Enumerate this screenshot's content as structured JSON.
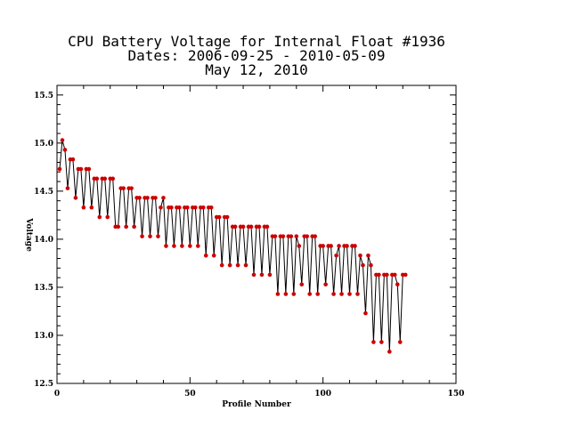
{
  "chart_data": {
    "type": "line",
    "title_lines": [
      "CPU Battery Voltage for Internal Float #1936",
      "Dates:  2006-09-25 -  2010-05-09",
      "May 12, 2010"
    ],
    "xlabel": "Profile Number",
    "ylabel": "Voltage",
    "xlim": [
      0,
      150
    ],
    "ylim": [
      12.5,
      15.6
    ],
    "x_ticks": [
      "0",
      "50",
      "100",
      "150"
    ],
    "y_ticks": [
      "12.5",
      "13.0",
      "13.5",
      "14.0",
      "14.5",
      "15.0",
      "15.5"
    ],
    "grid": false,
    "series": [
      {
        "line_color": "#000000",
        "marker_color": "#cc0000",
        "x": [
          1,
          2,
          3,
          4,
          5,
          6,
          7,
          8,
          9,
          10,
          11,
          12,
          13,
          14,
          15,
          16,
          17,
          18,
          19,
          20,
          21,
          22,
          23,
          24,
          25,
          26,
          27,
          28,
          29,
          30,
          31,
          32,
          33,
          34,
          35,
          36,
          37,
          38,
          39,
          40,
          41,
          42,
          43,
          44,
          45,
          46,
          47,
          48,
          49,
          50,
          51,
          52,
          53,
          54,
          55,
          56,
          57,
          58,
          59,
          60,
          61,
          62,
          63,
          64,
          65,
          66,
          67,
          68,
          69,
          70,
          71,
          72,
          73,
          74,
          75,
          76,
          77,
          78,
          79,
          80,
          81,
          82,
          83,
          84,
          85,
          86,
          87,
          88,
          89,
          90,
          91,
          92,
          93,
          94,
          95,
          96,
          97,
          98,
          99,
          100,
          101,
          102,
          103,
          104,
          105,
          106,
          107,
          108,
          109,
          110,
          111,
          112,
          113,
          114,
          115,
          116,
          117,
          118,
          119,
          120,
          121,
          122,
          123,
          124,
          125,
          126,
          127,
          128,
          129,
          130,
          131
        ],
        "y": [
          14.73,
          15.03,
          14.93,
          14.53,
          14.83,
          14.83,
          14.43,
          14.73,
          14.73,
          14.33,
          14.73,
          14.73,
          14.33,
          14.63,
          14.63,
          14.23,
          14.63,
          14.63,
          14.23,
          14.63,
          14.63,
          14.13,
          14.13,
          14.53,
          14.53,
          14.13,
          14.53,
          14.53,
          14.13,
          14.43,
          14.43,
          14.03,
          14.43,
          14.43,
          14.03,
          14.43,
          14.43,
          14.03,
          14.33,
          14.43,
          13.93,
          14.33,
          14.33,
          13.93,
          14.33,
          14.33,
          13.93,
          14.33,
          14.33,
          13.93,
          14.33,
          14.33,
          13.93,
          14.33,
          14.33,
          13.83,
          14.33,
          14.33,
          13.83,
          14.23,
          14.23,
          13.73,
          14.23,
          14.23,
          13.73,
          14.13,
          14.13,
          13.73,
          14.13,
          14.13,
          13.73,
          14.13,
          14.13,
          13.63,
          14.13,
          14.13,
          13.63,
          14.13,
          14.13,
          13.63,
          14.03,
          14.03,
          13.43,
          14.03,
          14.03,
          13.43,
          14.03,
          14.03,
          13.43,
          14.03,
          13.93,
          13.53,
          14.03,
          14.03,
          13.43,
          14.03,
          14.03,
          13.43,
          13.93,
          13.93,
          13.53,
          13.93,
          13.93,
          13.43,
          13.83,
          13.93,
          13.43,
          13.93,
          13.93,
          13.43,
          13.93,
          13.93,
          13.43,
          13.83,
          13.73,
          13.23,
          13.83,
          13.73,
          12.93,
          13.63,
          13.63,
          12.93,
          13.63,
          13.63,
          12.83,
          13.63,
          13.63,
          13.53,
          12.93,
          13.63,
          13.63
        ]
      }
    ]
  }
}
